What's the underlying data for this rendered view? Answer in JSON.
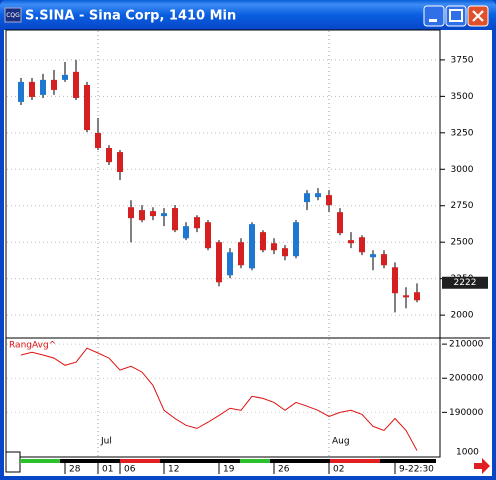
{
  "window": {
    "title": "S.SINA - Sina Corp, 1410 Min",
    "icon_text": "CQG"
  },
  "chart_data": [
    {
      "type": "candlestick",
      "categories": [
        null,
        null,
        null,
        null,
        "28",
        null,
        null,
        "01",
        null,
        "06",
        null,
        null,
        null,
        "12",
        null,
        null,
        null,
        null,
        "19",
        null,
        null,
        null,
        null,
        "26",
        null,
        null,
        null,
        null,
        "02",
        null,
        null,
        null,
        null,
        null,
        "9-22:30",
        null,
        null
      ],
      "months": [
        null,
        null,
        null,
        null,
        null,
        null,
        null,
        "Jul",
        null,
        null,
        null,
        null,
        null,
        null,
        null,
        null,
        null,
        null,
        null,
        null,
        null,
        null,
        null,
        null,
        null,
        null,
        null,
        null,
        "Aug",
        null,
        null,
        null,
        null,
        null,
        null,
        null,
        null
      ],
      "open": [
        3462,
        3599,
        3510,
        3613,
        3613,
        3668,
        3578,
        3249,
        3146,
        3118,
        2740,
        2720,
        2713,
        2679,
        2734,
        2527,
        2672,
        2637,
        2500,
        2273,
        2500,
        2321,
        2569,
        2493,
        2459,
        2404,
        2775,
        2809,
        2823,
        2706,
        2514,
        2534,
        2397,
        2418,
        2328,
        2136,
        2157
      ],
      "high": [
        3626,
        3626,
        3654,
        3681,
        3736,
        3750,
        3599,
        3352,
        3166,
        3132,
        2788,
        2754,
        2740,
        2734,
        2754,
        2637,
        2685,
        2651,
        2514,
        2459,
        2527,
        2637,
        2582,
        2527,
        2480,
        2651,
        2857,
        2871,
        2857,
        2734,
        2569,
        2548,
        2445,
        2445,
        2362,
        2191,
        2218
      ],
      "low": [
        3441,
        3475,
        3489,
        3510,
        3599,
        3475,
        3255,
        3132,
        3029,
        2926,
        2500,
        2637,
        2651,
        2610,
        2569,
        2514,
        2569,
        2445,
        2198,
        2253,
        2321,
        2308,
        2431,
        2418,
        2376,
        2390,
        2720,
        2788,
        2706,
        2548,
        2459,
        2411,
        2308,
        2321,
        2019,
        2047,
        2088
      ],
      "close": [
        3599,
        3496,
        3613,
        3544,
        3647,
        3489,
        3269,
        3146,
        3049,
        2981,
        2665,
        2651,
        2679,
        2699,
        2582,
        2610,
        2596,
        2459,
        2225,
        2431,
        2342,
        2624,
        2445,
        2445,
        2404,
        2637,
        2836,
        2836,
        2754,
        2562,
        2493,
        2431,
        2418,
        2342,
        2150,
        2122,
        2102
      ],
      "up_color": "#1e78d2",
      "down_color": "#d42020",
      "ylim": [
        1850,
        3955
      ],
      "yticks": [
        2000,
        2250,
        2500,
        2750,
        3000,
        3250,
        3500,
        3750
      ],
      "last_price": 2222,
      "grid": true
    },
    {
      "type": "line",
      "series": [
        {
          "name": "RangAvg^",
          "color": "#e01010",
          "values": [
            206800,
            207600,
            206800,
            205900,
            203800,
            204700,
            208800,
            207400,
            205900,
            202400,
            203500,
            201800,
            197900,
            190600,
            188200,
            186200,
            185300,
            187100,
            189100,
            191200,
            190600,
            194700,
            194100,
            192900,
            190600,
            192900,
            191800,
            190600,
            188800,
            190000,
            190600,
            189400,
            185900,
            184700,
            188200,
            184700,
            178800
          ]
        }
      ],
      "ylim": [
        177500,
        211500
      ],
      "yticks": [
        190000,
        200000,
        210000
      ],
      "scale_label": "1000",
      "grid": true
    }
  ]
}
